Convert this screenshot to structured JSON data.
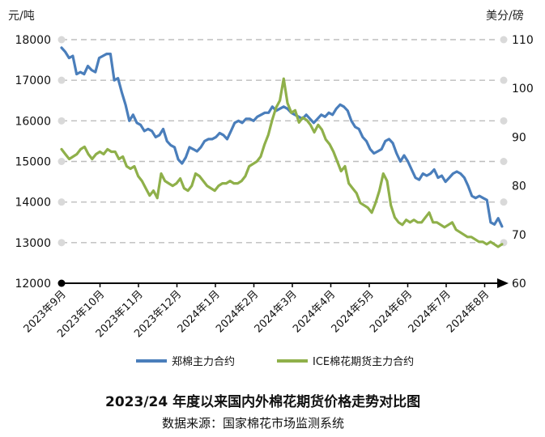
{
  "chart_data": {
    "type": "line",
    "title": "2023/24 年度以来国内外棉花期货价格走势对比图",
    "source": "数据来源：国家棉花市场监测系统",
    "left_axis": {
      "unit": "元/吨",
      "ylim": [
        12000,
        18000
      ],
      "ticks": [
        "18000",
        "17000",
        "16000",
        "15000",
        "14000",
        "13000",
        "12000"
      ]
    },
    "right_axis": {
      "unit": "美分/磅",
      "ylim": [
        60,
        110
      ],
      "ticks": [
        "110",
        "100",
        "90",
        "80",
        "70",
        "60"
      ]
    },
    "x_labels": [
      "2023年9月",
      "2023年10月",
      "2023年11月",
      "2023年12月",
      "2024年1月",
      "2024年2月",
      "2024年3月",
      "2024年4月",
      "2024年5月",
      "2024年6月",
      "2024年7月",
      "2024年8月"
    ],
    "grid": true,
    "legend_position": "bottom",
    "series": [
      {
        "name": "郑棉主力合约",
        "axis": "left",
        "color": "#4a7ebb",
        "values": [
          17800,
          17700,
          17550,
          17600,
          17150,
          17200,
          17150,
          17350,
          17250,
          17200,
          17550,
          17600,
          17650,
          17650,
          17000,
          17050,
          16700,
          16400,
          16000,
          16150,
          15950,
          15900,
          15750,
          15800,
          15750,
          15600,
          15650,
          15800,
          15500,
          15400,
          15350,
          15050,
          14950,
          15100,
          15350,
          15300,
          15250,
          15350,
          15500,
          15550,
          15550,
          15600,
          15700,
          15650,
          15550,
          15750,
          15950,
          16000,
          15950,
          16050,
          16050,
          16000,
          16100,
          16150,
          16200,
          16200,
          16350,
          16250,
          16300,
          16350,
          16300,
          16200,
          16150,
          16100,
          16050,
          16150,
          16050,
          15950,
          16050,
          16150,
          16100,
          16200,
          16150,
          16300,
          16400,
          16350,
          16250,
          16000,
          15850,
          15800,
          15600,
          15500,
          15300,
          15200,
          15250,
          15300,
          15500,
          15550,
          15450,
          15200,
          15000,
          15150,
          15000,
          14800,
          14600,
          14550,
          14700,
          14650,
          14700,
          14800,
          14600,
          14650,
          14500,
          14600,
          14700,
          14750,
          14700,
          14600,
          14400,
          14150,
          14100,
          14150,
          14100,
          14050,
          13500,
          13450,
          13600,
          13400
        ],
        "x_start": 0,
        "x_end": 11.45
      },
      {
        "name": "ICE棉花期货主力合约",
        "axis": "right",
        "color": "#8fb04a",
        "values": [
          87.5,
          86.5,
          85.5,
          86.0,
          86.5,
          87.5,
          88.0,
          86.5,
          85.5,
          86.5,
          87.0,
          86.5,
          87.5,
          87.0,
          87.0,
          85.5,
          86.0,
          84.0,
          83.5,
          84.0,
          82.0,
          81.0,
          79.5,
          78.0,
          79.0,
          77.5,
          82.5,
          81.0,
          80.5,
          80.0,
          80.5,
          81.5,
          79.5,
          79.0,
          80.0,
          82.5,
          82.0,
          81.0,
          80.0,
          79.5,
          79.0,
          80.0,
          80.5,
          80.5,
          81.0,
          80.5,
          80.5,
          81.0,
          82.0,
          84.0,
          84.5,
          85.0,
          86.0,
          88.5,
          90.5,
          93.5,
          96.0,
          97.5,
          102.0,
          97.0,
          95.0,
          95.5,
          93.0,
          94.0,
          93.5,
          92.5,
          91.0,
          92.5,
          91.5,
          89.5,
          88.5,
          87.0,
          85.0,
          83.0,
          84.0,
          80.5,
          79.5,
          78.5,
          76.5,
          76.0,
          75.5,
          74.5,
          76.5,
          79.0,
          82.5,
          81.0,
          76.0,
          73.5,
          72.5,
          72.0,
          73.0,
          72.5,
          73.0,
          72.5,
          72.5,
          73.5,
          74.5,
          72.5,
          72.5,
          72.0,
          71.5,
          72.0,
          72.5,
          71.0,
          70.5,
          70.0,
          69.5,
          69.5,
          69.0,
          68.5,
          68.5,
          68.0,
          68.5,
          68.0,
          67.5,
          68.0
        ],
        "x_start": 0,
        "x_end": 11.45
      }
    ]
  }
}
